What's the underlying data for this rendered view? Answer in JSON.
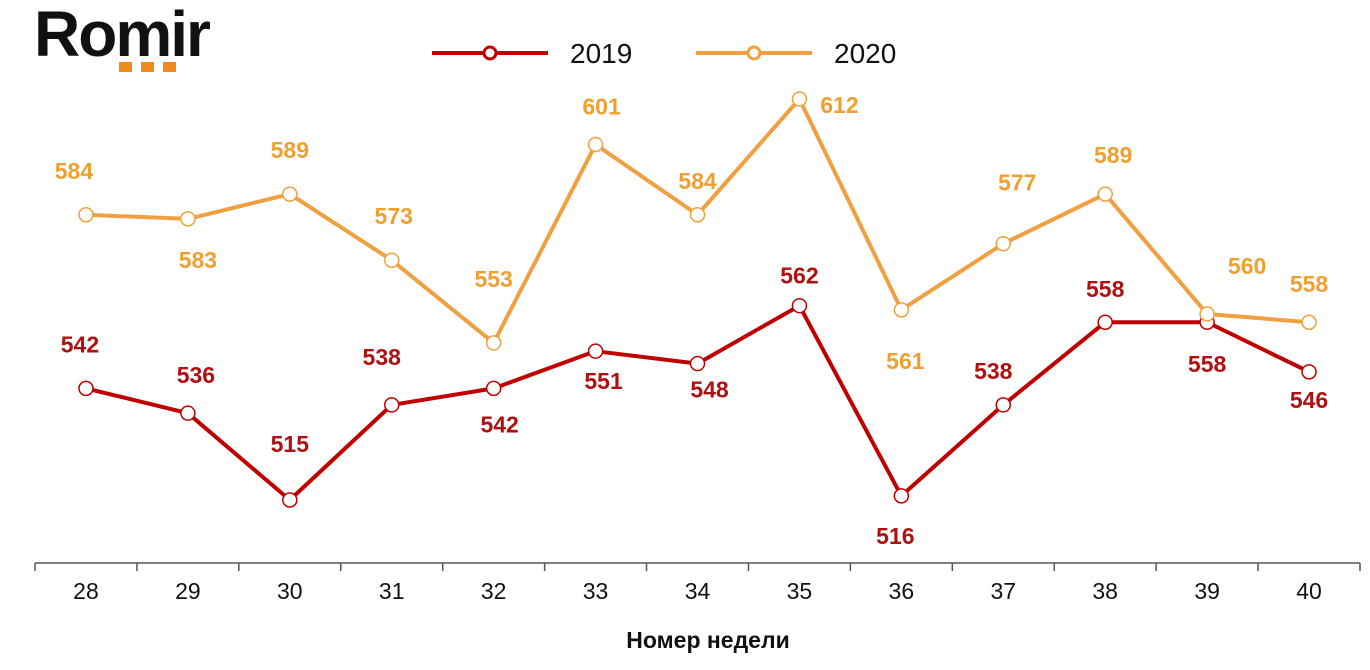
{
  "logo": {
    "text": "Romir",
    "accent_color": "#f08a1c"
  },
  "chart_data": {
    "type": "line",
    "title": "",
    "xlabel": "Номер недели",
    "ylabel": "",
    "categories": [
      "28",
      "29",
      "30",
      "31",
      "32",
      "33",
      "34",
      "35",
      "36",
      "37",
      "38",
      "39",
      "40"
    ],
    "series": [
      {
        "name": "2019",
        "color": "#c00000",
        "values": [
          542,
          536,
          515,
          538,
          542,
          551,
          548,
          562,
          516,
          538,
          558,
          558,
          546
        ]
      },
      {
        "name": "2020",
        "color": "#f0a040",
        "values": [
          584,
          583,
          589,
          573,
          553,
          601,
          584,
          612,
          561,
          577,
          589,
          560,
          558
        ]
      }
    ],
    "ylim": [
      500,
      620
    ],
    "grid": false,
    "legend": "top-center"
  }
}
